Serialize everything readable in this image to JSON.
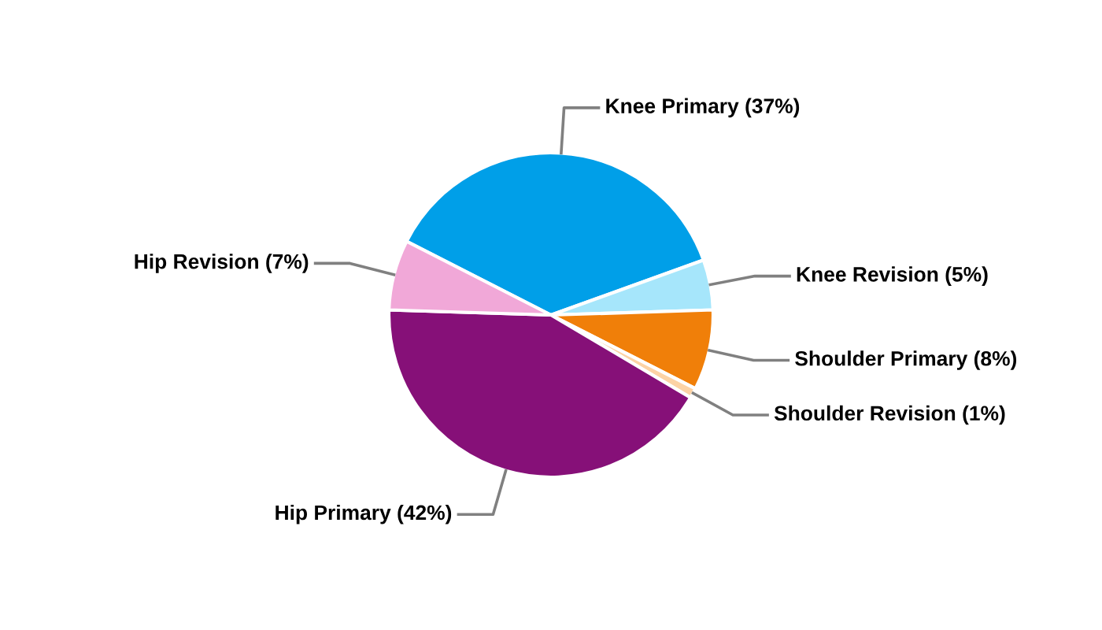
{
  "chart_data": {
    "type": "pie",
    "categories": [
      "Knee Primary",
      "Knee Revision",
      "Shoulder Primary",
      "Shoulder Revision",
      "Hip Primary",
      "Hip Revision"
    ],
    "values": [
      37,
      5,
      8,
      1,
      42,
      7
    ],
    "value_labels": [
      "(37%)",
      "(5%)",
      "(8%)",
      "(1%)",
      "(42%)",
      "(7%)"
    ],
    "colors": [
      "#009fe8",
      "#a6e6fb",
      "#f07f09",
      "#fcd3a5",
      "#861078",
      "#f1a8d8"
    ]
  }
}
